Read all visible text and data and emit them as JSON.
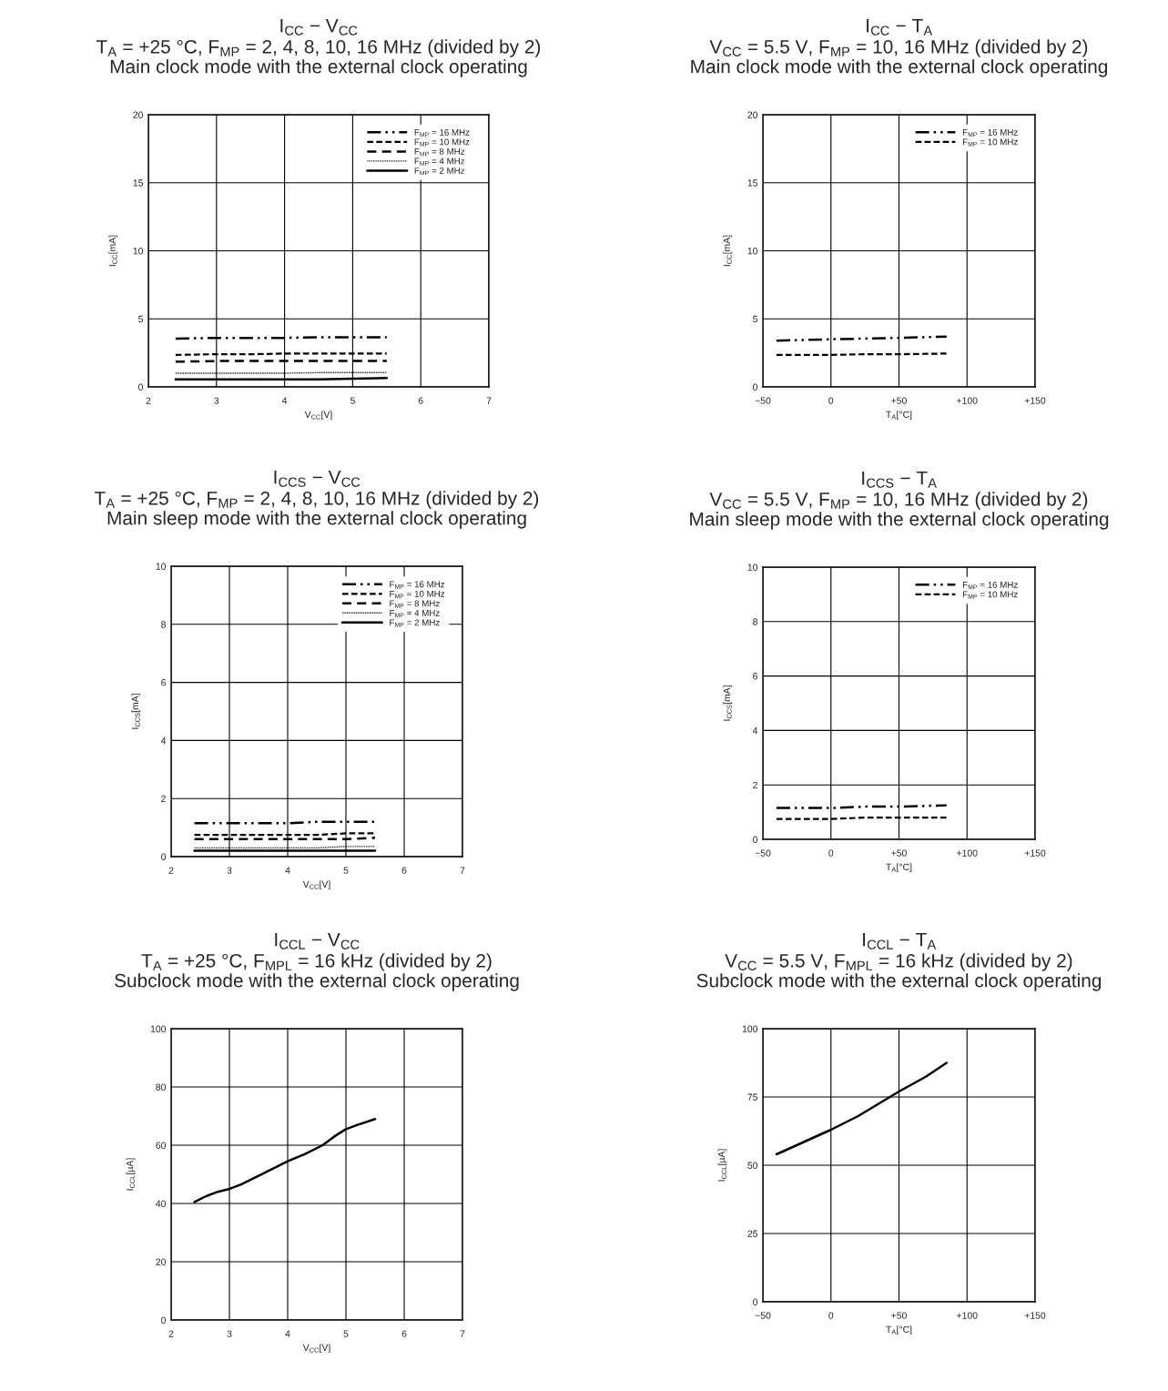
{
  "chart_data": [
    {
      "type": "line",
      "title": "I$_{CC}$ − V$_{CC}$",
      "subtitle": "T$_{A}$ = +25 °C, F$_{MP}$ = 2, 4, 8, 10, 16 MHz (divided by 2)\nMain clock mode with the external clock operating",
      "xlabel": "V$_{CC}$[V]",
      "ylabel": "I$_{CC}$[mA]",
      "xlim": [
        2,
        7
      ],
      "xticks": [
        2,
        3,
        4,
        5,
        6,
        7
      ],
      "ylim": [
        0,
        20
      ],
      "yticks": [
        0,
        5,
        10,
        15,
        20
      ],
      "grid": true,
      "legend": "top right",
      "x": [
        2.4,
        3,
        3.5,
        4,
        4.5,
        5,
        5.5
      ],
      "series": [
        {
          "name": "F$_{MP}$ = 16 MHz",
          "color": "#000000",
          "line_style": "dashdotdot",
          "values": [
            3.55,
            3.6,
            3.6,
            3.6,
            3.65,
            3.65,
            3.65
          ]
        },
        {
          "name": "F$_{MP}$ = 10 MHz",
          "color": "#000000",
          "line_style": "dashed",
          "values": [
            2.35,
            2.4,
            2.4,
            2.45,
            2.45,
            2.45,
            2.45
          ]
        },
        {
          "name": "F$_{MP}$ = 8 MHz",
          "color": "#000000",
          "line_style": "longdashed",
          "values": [
            1.85,
            1.9,
            1.9,
            1.9,
            1.9,
            1.9,
            1.9
          ]
        },
        {
          "name": "F$_{MP}$ = 4 MHz",
          "color": "#000000",
          "line_style": "dotted",
          "values": [
            1.0,
            1.0,
            1.0,
            1.0,
            1.05,
            1.05,
            1.05
          ]
        },
        {
          "name": "F$_{MP}$ = 2 MHz",
          "color": "#000000",
          "line_style": "solid",
          "values": [
            0.55,
            0.55,
            0.55,
            0.55,
            0.55,
            0.6,
            0.65
          ]
        }
      ]
    },
    {
      "type": "line",
      "title": "I$_{CC}$ − T$_{A}$",
      "subtitle": "V$_{CC}$ = 5.5 V, F$_{MP}$ = 10, 16 MHz (divided by 2)\nMain clock mode with the external clock operating",
      "xlabel": "T$_{A}$[°C]",
      "ylabel": "I$_{CC}$[mA]",
      "xlim": [
        -50,
        150
      ],
      "xticks": [
        {
          "value": -50,
          "label": "−50"
        },
        0,
        {
          "value": 50,
          "label": "+50"
        },
        {
          "value": 100,
          "label": "+100"
        },
        {
          "value": 150,
          "label": "+150"
        }
      ],
      "ylim": [
        0,
        20
      ],
      "yticks": [
        0,
        5,
        10,
        15,
        20
      ],
      "grid": true,
      "legend": "top right",
      "x": [
        -40,
        0,
        25,
        50,
        85
      ],
      "series": [
        {
          "name": "F$_{MP}$ = 16 MHz",
          "color": "#000000",
          "line_style": "dashdotdot",
          "values": [
            3.4,
            3.5,
            3.55,
            3.6,
            3.7
          ]
        },
        {
          "name": "F$_{MP}$ = 10 MHz",
          "color": "#000000",
          "line_style": "dashed",
          "values": [
            2.35,
            2.35,
            2.4,
            2.4,
            2.45
          ]
        }
      ]
    },
    {
      "type": "line",
      "title": "I$_{CCS}$ − V$_{CC}$",
      "subtitle": "T$_{A}$ = +25 °C, F$_{MP}$ = 2, 4, 8, 10, 16 MHz (divided by 2)\nMain sleep mode with the external clock operating",
      "xlabel": "V$_{CC}$[V]",
      "ylabel": "I$_{CCS}$[mA]",
      "xlim": [
        2,
        7
      ],
      "xticks": [
        2,
        3,
        4,
        5,
        6,
        7
      ],
      "ylim": [
        0,
        10
      ],
      "yticks": [
        0,
        2,
        4,
        6,
        8,
        10
      ],
      "grid": true,
      "legend": "top right",
      "x": [
        2.4,
        3,
        3.5,
        4,
        4.5,
        5,
        5.5
      ],
      "series": [
        {
          "name": "F$_{MP}$ = 16 MHz",
          "color": "#000000",
          "line_style": "dashdotdot",
          "values": [
            1.15,
            1.15,
            1.15,
            1.15,
            1.2,
            1.2,
            1.2
          ]
        },
        {
          "name": "F$_{MP}$ = 10 MHz",
          "color": "#000000",
          "line_style": "dashed",
          "values": [
            0.75,
            0.75,
            0.75,
            0.75,
            0.75,
            0.8,
            0.8
          ]
        },
        {
          "name": "F$_{MP}$ = 8 MHz",
          "color": "#000000",
          "line_style": "longdashed",
          "values": [
            0.6,
            0.6,
            0.6,
            0.6,
            0.6,
            0.6,
            0.65
          ]
        },
        {
          "name": "F$_{MP}$ = 4 MHz",
          "color": "#000000",
          "line_style": "dotted",
          "values": [
            0.3,
            0.3,
            0.3,
            0.3,
            0.3,
            0.35,
            0.35
          ]
        },
        {
          "name": "F$_{MP}$ = 2 MHz",
          "color": "#000000",
          "line_style": "solid",
          "values": [
            0.2,
            0.2,
            0.2,
            0.2,
            0.2,
            0.2,
            0.2
          ]
        }
      ]
    },
    {
      "type": "line",
      "title": "I$_{CCS}$ − T$_{A}$",
      "subtitle": "V$_{CC}$ = 5.5 V, F$_{MP}$ = 10, 16 MHz (divided by 2)\nMain sleep mode with the external clock operating",
      "xlabel": "T$_{A}$[°C]",
      "ylabel": "I$_{CCS}$[mA]",
      "xlim": [
        -50,
        150
      ],
      "xticks": [
        {
          "value": -50,
          "label": "−50"
        },
        0,
        {
          "value": 50,
          "label": "+50"
        },
        {
          "value": 100,
          "label": "+100"
        },
        {
          "value": 150,
          "label": "+150"
        }
      ],
      "ylim": [
        0,
        10
      ],
      "yticks": [
        0,
        2,
        4,
        6,
        8,
        10
      ],
      "grid": true,
      "legend": "top right",
      "x": [
        -40,
        0,
        25,
        50,
        85
      ],
      "series": [
        {
          "name": "F$_{MP}$ = 16 MHz",
          "color": "#000000",
          "line_style": "dashdotdot",
          "values": [
            1.15,
            1.15,
            1.2,
            1.2,
            1.25
          ]
        },
        {
          "name": "F$_{MP}$ = 10 MHz",
          "color": "#000000",
          "line_style": "dashed",
          "values": [
            0.75,
            0.75,
            0.8,
            0.8,
            0.8
          ]
        }
      ]
    },
    {
      "type": "line",
      "title": "I$_{CCL}$ − V$_{CC}$",
      "subtitle": "T$_{A}$ = +25 °C, F$_{MPL}$ = 16 kHz (divided by 2)\nSubclock mode with the external clock operating",
      "xlabel": "V$_{CC}$[V]",
      "ylabel": "I$_{CCL}$[µA]",
      "xlim": [
        2,
        7
      ],
      "xticks": [
        2,
        3,
        4,
        5,
        6,
        7
      ],
      "ylim": [
        0,
        100
      ],
      "yticks": [
        0,
        20,
        40,
        60,
        80,
        100
      ],
      "grid": true,
      "legend": false,
      "x": [
        2.4,
        2.6,
        2.8,
        3.0,
        3.2,
        3.5,
        4.0,
        4.3,
        4.6,
        4.8,
        5.0,
        5.2,
        5.5
      ],
      "series": [
        {
          "color": "#000000",
          "line_style": "solid",
          "values": [
            40.5,
            42.5,
            44,
            45,
            46.5,
            49.5,
            54.5,
            57,
            60,
            63,
            65.5,
            67,
            69
          ]
        }
      ]
    },
    {
      "type": "line",
      "title": "I$_{CCL}$ − T$_{A}$",
      "subtitle": "V$_{CC}$ = 5.5 V, F$_{MPL}$ = 16 kHz (divided by 2)\nSubclock mode with the external clock operating",
      "xlabel": "T$_{A}$[°C]",
      "ylabel": "I$_{CCL}$[µA]",
      "xlim": [
        -50,
        150
      ],
      "xticks": [
        {
          "value": -50,
          "label": "−50"
        },
        0,
        {
          "value": 50,
          "label": "+50"
        },
        {
          "value": 100,
          "label": "+100"
        },
        {
          "value": 150,
          "label": "+150"
        }
      ],
      "ylim": [
        0,
        100
      ],
      "yticks": [
        0,
        25,
        50,
        75,
        100
      ],
      "grid": true,
      "legend": false,
      "x": [
        -40,
        -20,
        0,
        20,
        40,
        50,
        70,
        85
      ],
      "series": [
        {
          "color": "#000000",
          "line_style": "solid",
          "values": [
            54,
            58.5,
            63,
            68,
            74,
            77,
            82.5,
            87.5
          ]
        }
      ]
    }
  ]
}
